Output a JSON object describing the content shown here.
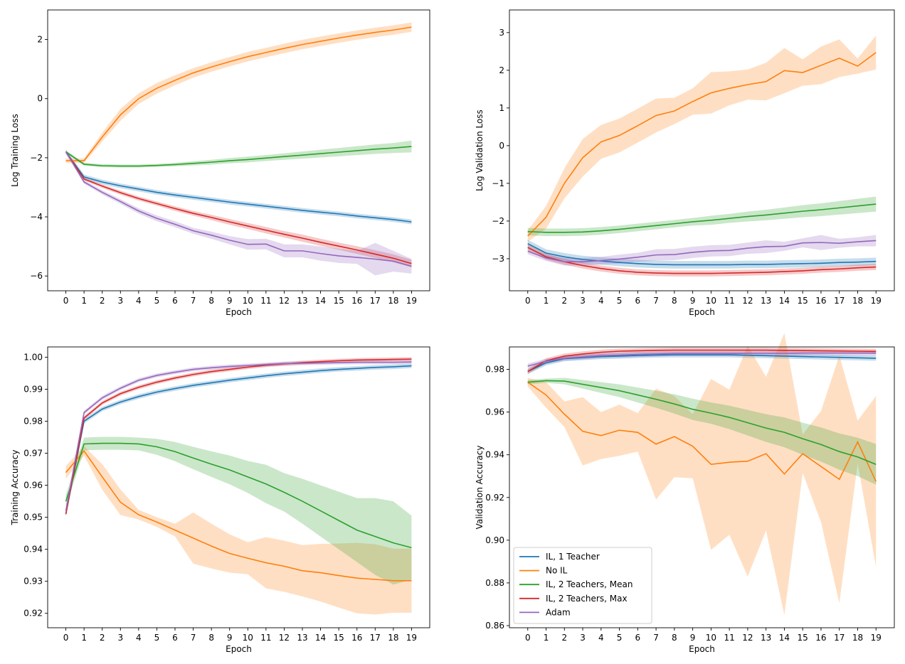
{
  "colors": {
    "IL, 1 Teacher": "#1f77b4",
    "No IL": "#ff7f0e",
    "IL, 2 Teachers, Mean": "#2ca02c",
    "IL, 2 Teachers, Max": "#d62728",
    "Adam": "#9467bd"
  },
  "chart_data": [
    {
      "type": "line",
      "xlabel": "Epoch",
      "ylabel": "Log Training Loss",
      "x": [
        0,
        1,
        2,
        3,
        4,
        5,
        6,
        7,
        8,
        9,
        10,
        11,
        12,
        13,
        14,
        15,
        16,
        17,
        18,
        19
      ],
      "xticks": [
        "0",
        "1",
        "2",
        "3",
        "4",
        "5",
        "6",
        "7",
        "8",
        "9",
        "10",
        "11",
        "12",
        "13",
        "14",
        "15",
        "16",
        "17",
        "18",
        "19"
      ],
      "xlim": [
        -1,
        20
      ],
      "ylim": [
        -6.5,
        3.0
      ],
      "yticks": [
        2,
        0,
        -2,
        -4,
        -6
      ],
      "ytick_labels": [
        "2",
        "0",
        "−2",
        "−4",
        "−6"
      ],
      "series": [
        {
          "name": "IL, 1 Teacher",
          "values": [
            -1.8,
            -2.65,
            -2.82,
            -2.95,
            -3.06,
            -3.17,
            -3.26,
            -3.34,
            -3.42,
            -3.5,
            -3.57,
            -3.64,
            -3.71,
            -3.78,
            -3.84,
            -3.9,
            -3.97,
            -4.03,
            -4.09,
            -4.17
          ],
          "band": 0.08
        },
        {
          "name": "No IL",
          "values": [
            -2.1,
            -2.1,
            -1.3,
            -0.55,
            0.0,
            0.35,
            0.62,
            0.87,
            1.07,
            1.25,
            1.42,
            1.56,
            1.7,
            1.83,
            1.94,
            2.05,
            2.15,
            2.24,
            2.32,
            2.42
          ],
          "band": [
            0.08,
            0.08,
            0.15,
            0.2,
            0.18,
            0.18,
            0.17,
            0.16,
            0.16,
            0.16,
            0.16,
            0.16,
            0.16,
            0.16,
            0.16,
            0.16,
            0.16,
            0.16,
            0.16,
            0.16
          ]
        },
        {
          "name": "IL, 2 Teachers, Mean",
          "values": [
            -1.8,
            -2.22,
            -2.27,
            -2.28,
            -2.28,
            -2.26,
            -2.23,
            -2.19,
            -2.15,
            -2.1,
            -2.06,
            -2.01,
            -1.96,
            -1.91,
            -1.86,
            -1.81,
            -1.76,
            -1.71,
            -1.67,
            -1.62
          ],
          "band": [
            0.05,
            0.05,
            0.05,
            0.05,
            0.05,
            0.05,
            0.06,
            0.07,
            0.08,
            0.09,
            0.1,
            0.1,
            0.11,
            0.12,
            0.13,
            0.14,
            0.15,
            0.16,
            0.17,
            0.2
          ]
        },
        {
          "name": "IL, 2 Teachers, Max",
          "values": [
            -1.8,
            -2.72,
            -2.96,
            -3.18,
            -3.38,
            -3.55,
            -3.72,
            -3.88,
            -4.02,
            -4.17,
            -4.31,
            -4.45,
            -4.59,
            -4.72,
            -4.86,
            -4.99,
            -5.12,
            -5.26,
            -5.4,
            -5.58
          ],
          "band": [
            0.04,
            0.05,
            0.06,
            0.07,
            0.07,
            0.07,
            0.08,
            0.08,
            0.09,
            0.1,
            0.1,
            0.11,
            0.11,
            0.12,
            0.12,
            0.12,
            0.13,
            0.13,
            0.13,
            0.13
          ]
        },
        {
          "name": "Adam",
          "values": [
            -1.8,
            -2.82,
            -3.17,
            -3.48,
            -3.8,
            -4.05,
            -4.25,
            -4.47,
            -4.62,
            -4.79,
            -4.93,
            -4.92,
            -5.15,
            -5.15,
            -5.24,
            -5.32,
            -5.37,
            -5.43,
            -5.5,
            -5.67
          ],
          "band": [
            0.05,
            0.06,
            0.07,
            0.08,
            0.09,
            0.1,
            0.1,
            0.1,
            0.12,
            0.14,
            0.18,
            0.18,
            0.22,
            0.22,
            0.24,
            0.24,
            0.22,
            0.55,
            0.35,
            0.25
          ]
        }
      ]
    },
    {
      "type": "line",
      "xlabel": "Epoch",
      "ylabel": "Log Validation Loss",
      "x": [
        0,
        1,
        2,
        3,
        4,
        5,
        6,
        7,
        8,
        9,
        10,
        11,
        12,
        13,
        14,
        15,
        16,
        17,
        18,
        19
      ],
      "xticks": [
        "0",
        "1",
        "2",
        "3",
        "4",
        "5",
        "6",
        "7",
        "8",
        "9",
        "10",
        "11",
        "12",
        "13",
        "14",
        "15",
        "16",
        "17",
        "18",
        "19"
      ],
      "xlim": [
        -1,
        20
      ],
      "ylim": [
        -3.85,
        3.6
      ],
      "yticks": [
        3,
        2,
        1,
        0,
        -1,
        -2,
        -3
      ],
      "ytick_labels": [
        "3",
        "2",
        "1",
        "0",
        "−1",
        "−2",
        "−3"
      ],
      "series": [
        {
          "name": "IL, 1 Teacher",
          "values": [
            -2.6,
            -2.85,
            -2.95,
            -3.02,
            -3.06,
            -3.1,
            -3.13,
            -3.15,
            -3.16,
            -3.16,
            -3.16,
            -3.16,
            -3.15,
            -3.15,
            -3.14,
            -3.13,
            -3.12,
            -3.1,
            -3.09,
            -3.07
          ],
          "band": 0.1
        },
        {
          "name": "No IL",
          "values": [
            -2.4,
            -1.9,
            -1.0,
            -0.32,
            0.1,
            0.27,
            0.53,
            0.8,
            0.92,
            1.17,
            1.4,
            1.52,
            1.62,
            1.7,
            1.99,
            1.94,
            2.13,
            2.32,
            2.11,
            2.47
          ],
          "band": [
            0.15,
            0.3,
            0.4,
            0.5,
            0.45,
            0.45,
            0.45,
            0.45,
            0.35,
            0.35,
            0.55,
            0.45,
            0.4,
            0.5,
            0.6,
            0.35,
            0.5,
            0.5,
            0.2,
            0.45
          ]
        },
        {
          "name": "IL, 2 Teachers, Mean",
          "values": [
            -2.28,
            -2.3,
            -2.3,
            -2.29,
            -2.26,
            -2.22,
            -2.17,
            -2.12,
            -2.07,
            -2.02,
            -1.98,
            -1.93,
            -1.88,
            -1.84,
            -1.79,
            -1.74,
            -1.7,
            -1.65,
            -1.6,
            -1.55
          ],
          "band": [
            0.1,
            0.1,
            0.1,
            0.1,
            0.1,
            0.1,
            0.1,
            0.1,
            0.1,
            0.1,
            0.12,
            0.12,
            0.13,
            0.14,
            0.15,
            0.16,
            0.17,
            0.18,
            0.19,
            0.2
          ]
        },
        {
          "name": "IL, 2 Teachers, Max",
          "values": [
            -2.7,
            -2.95,
            -3.08,
            -3.18,
            -3.26,
            -3.32,
            -3.36,
            -3.38,
            -3.39,
            -3.39,
            -3.39,
            -3.38,
            -3.37,
            -3.36,
            -3.34,
            -3.32,
            -3.29,
            -3.27,
            -3.24,
            -3.22
          ],
          "band": 0.08
        },
        {
          "name": "Adam",
          "values": [
            -2.8,
            -2.98,
            -3.08,
            -3.08,
            -3.05,
            -3.01,
            -2.96,
            -2.9,
            -2.89,
            -2.83,
            -2.79,
            -2.78,
            -2.72,
            -2.68,
            -2.67,
            -2.58,
            -2.57,
            -2.59,
            -2.55,
            -2.52
          ],
          "band": [
            0.08,
            0.08,
            0.1,
            0.1,
            0.1,
            0.12,
            0.12,
            0.15,
            0.15,
            0.15,
            0.15,
            0.15,
            0.15,
            0.17,
            0.12,
            0.12,
            0.2,
            0.12,
            0.12,
            0.15
          ]
        }
      ]
    },
    {
      "type": "line",
      "xlabel": "Epoch",
      "ylabel": "Training Accuracy",
      "x": [
        0,
        1,
        2,
        3,
        4,
        5,
        6,
        7,
        8,
        9,
        10,
        11,
        12,
        13,
        14,
        15,
        16,
        17,
        18,
        19
      ],
      "xticks": [
        "0",
        "1",
        "2",
        "3",
        "4",
        "5",
        "6",
        "7",
        "8",
        "9",
        "10",
        "11",
        "12",
        "13",
        "14",
        "15",
        "16",
        "17",
        "18",
        "19"
      ],
      "xlim": [
        -1,
        20
      ],
      "ylim": [
        0.9155,
        1.0032
      ],
      "yticks": [
        1.0,
        0.99,
        0.98,
        0.97,
        0.96,
        0.95,
        0.94,
        0.93,
        0.92
      ],
      "ytick_labels": [
        "1.00",
        "0.99",
        "0.98",
        "0.97",
        "0.96",
        "0.95",
        "0.94",
        "0.93",
        "0.92"
      ],
      "series": [
        {
          "name": "IL, 1 Teacher",
          "values": [
            0.951,
            0.98,
            0.9838,
            0.986,
            0.9877,
            0.9891,
            0.9902,
            0.9912,
            0.992,
            0.9928,
            0.9935,
            0.9942,
            0.9948,
            0.9953,
            0.9958,
            0.9962,
            0.9965,
            0.9968,
            0.997,
            0.9973
          ],
          "band": 0.0007
        },
        {
          "name": "No IL",
          "values": [
            0.964,
            0.9707,
            0.9626,
            0.9547,
            0.9508,
            0.9485,
            0.946,
            0.9435,
            0.941,
            0.9387,
            0.9372,
            0.9358,
            0.9347,
            0.9333,
            0.9327,
            0.9318,
            0.931,
            0.9306,
            0.9302,
            0.9302
          ],
          "band": [
            0.002,
            0.0015,
            0.004,
            0.004,
            0.0015,
            0.0015,
            0.002,
            0.008,
            0.007,
            0.006,
            0.005,
            0.008,
            0.008,
            0.008,
            0.009,
            0.01,
            0.011,
            0.011,
            0.01,
            0.01
          ]
        },
        {
          "name": "IL, 2 Teachers, Mean",
          "values": [
            0.955,
            0.9729,
            0.9731,
            0.9731,
            0.9729,
            0.972,
            0.9705,
            0.9685,
            0.9666,
            0.9648,
            0.9626,
            0.9604,
            0.9578,
            0.955,
            0.952,
            0.949,
            0.946,
            0.944,
            0.942,
            0.9405
          ],
          "band": [
            0.002,
            0.002,
            0.002,
            0.002,
            0.002,
            0.0025,
            0.003,
            0.0035,
            0.004,
            0.0045,
            0.005,
            0.006,
            0.006,
            0.007,
            0.008,
            0.009,
            0.01,
            0.012,
            0.013,
            0.01
          ]
        },
        {
          "name": "IL, 2 Teachers, Max",
          "values": [
            0.951,
            0.981,
            0.9857,
            0.9886,
            0.9906,
            0.9922,
            0.9935,
            0.9946,
            0.9955,
            0.9962,
            0.9969,
            0.9975,
            0.9979,
            0.9983,
            0.9986,
            0.9989,
            0.9991,
            0.9992,
            0.9993,
            0.9994
          ],
          "band": 0.0006
        },
        {
          "name": "Adam",
          "values": [
            0.952,
            0.9827,
            0.9873,
            0.9903,
            0.9928,
            0.9943,
            0.9953,
            0.9962,
            0.9967,
            0.9971,
            0.9974,
            0.9977,
            0.998,
            0.9981,
            0.9982,
            0.9983,
            0.9984,
            0.9984,
            0.9984,
            0.9985
          ],
          "band": 0.0006
        }
      ]
    },
    {
      "type": "line",
      "xlabel": "Epoch",
      "ylabel": "Validation Accuracy",
      "x": [
        0,
        1,
        2,
        3,
        4,
        5,
        6,
        7,
        8,
        9,
        10,
        11,
        12,
        13,
        14,
        15,
        16,
        17,
        18,
        19
      ],
      "xticks": [
        "0",
        "1",
        "2",
        "3",
        "4",
        "5",
        "6",
        "7",
        "8",
        "9",
        "10",
        "11",
        "12",
        "13",
        "14",
        "15",
        "16",
        "17",
        "18",
        "19"
      ],
      "xlim": [
        -1,
        20
      ],
      "ylim": [
        0.859,
        0.9905
      ],
      "yticks": [
        0.98,
        0.96,
        0.94,
        0.92,
        0.9,
        0.88,
        0.86
      ],
      "ytick_labels": [
        "0.98",
        "0.96",
        "0.94",
        "0.92",
        "0.90",
        "0.88",
        "0.86"
      ],
      "legend": {
        "position": "lower-left",
        "entries": [
          "IL, 1 Teacher",
          "No IL",
          "IL, 2 Teachers, Mean",
          "IL, 2 Teachers, Max",
          "Adam"
        ]
      },
      "series": [
        {
          "name": "IL, 1 Teacher",
          "values": [
            0.979,
            0.983,
            0.985,
            0.9855,
            0.986,
            0.9862,
            0.9865,
            0.9867,
            0.9868,
            0.9868,
            0.9868,
            0.9868,
            0.9866,
            0.9864,
            0.9862,
            0.986,
            0.9858,
            0.9856,
            0.9854,
            0.9852
          ],
          "band": 0.0012
        },
        {
          "name": "No IL",
          "values": [
            0.974,
            0.968,
            0.959,
            0.951,
            0.949,
            0.9515,
            0.9505,
            0.945,
            0.9485,
            0.944,
            0.9355,
            0.9365,
            0.937,
            0.9405,
            0.931,
            0.9405,
            0.9345,
            0.9285,
            0.946,
            0.9275
          ],
          "band": [
            0.002,
            0.006,
            0.006,
            0.016,
            0.011,
            0.012,
            0.009,
            0.026,
            0.019,
            0.015,
            0.04,
            0.034,
            0.054,
            0.036,
            0.066,
            0.009,
            0.026,
            0.058,
            0.01,
            0.04
          ]
        },
        {
          "name": "IL, 2 Teachers, Mean",
          "values": [
            0.974,
            0.9747,
            0.9745,
            0.973,
            0.9715,
            0.97,
            0.968,
            0.966,
            0.9638,
            0.9613,
            0.9595,
            0.9575,
            0.955,
            0.9525,
            0.9505,
            0.9475,
            0.9448,
            0.9415,
            0.939,
            0.9355
          ],
          "band": [
            0.001,
            0.001,
            0.0015,
            0.002,
            0.0025,
            0.003,
            0.0035,
            0.004,
            0.0045,
            0.005,
            0.005,
            0.0055,
            0.006,
            0.0065,
            0.007,
            0.0075,
            0.008,
            0.0085,
            0.009,
            0.0095
          ]
        },
        {
          "name": "IL, 2 Teachers, Max",
          "values": [
            0.979,
            0.984,
            0.9862,
            0.9872,
            0.988,
            0.9885,
            0.9887,
            0.9889,
            0.989,
            0.989,
            0.989,
            0.989,
            0.989,
            0.989,
            0.9889,
            0.9888,
            0.9887,
            0.9886,
            0.9885,
            0.9884
          ],
          "band": 0.0012
        },
        {
          "name": "Adam",
          "values": [
            0.9815,
            0.9838,
            0.9852,
            0.9858,
            0.9864,
            0.9867,
            0.987,
            0.9872,
            0.9874,
            0.9874,
            0.9874,
            0.9874,
            0.9875,
            0.9875,
            0.9875,
            0.9876,
            0.9876,
            0.9876,
            0.9876,
            0.9876
          ],
          "band": 0.0012
        }
      ]
    }
  ]
}
